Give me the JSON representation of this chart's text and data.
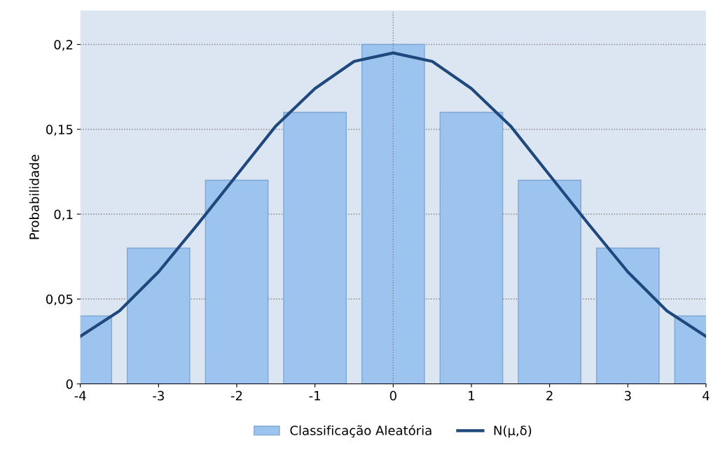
{
  "chart_data": {
    "type": "bar",
    "ylabel": "Probabilidade",
    "x": [
      -4,
      -3,
      -2,
      -1,
      0,
      1,
      2,
      3,
      4
    ],
    "series": [
      {
        "name": "Classificação Aleatória",
        "color": "#9dc3ef",
        "values": [
          0.04,
          0.08,
          0.12,
          0.16,
          0.2,
          0.16,
          0.12,
          0.08,
          0.04
        ]
      },
      {
        "name": "N(μ,δ)",
        "type": "line",
        "color": "#1f497d",
        "x": [
          -4,
          -3.5,
          -3,
          -2.5,
          -2,
          -1.5,
          -1,
          -0.5,
          0,
          0.5,
          1,
          1.5,
          2,
          2.5,
          3,
          3.5,
          4
        ],
        "values": [
          0.028,
          0.043,
          0.066,
          0.094,
          0.123,
          0.152,
          0.174,
          0.19,
          0.195,
          0.19,
          0.174,
          0.152,
          0.123,
          0.094,
          0.066,
          0.043,
          0.028
        ]
      }
    ],
    "xlim": [
      -4,
      4
    ],
    "xticks": [
      -4,
      -3,
      -2,
      -1,
      0,
      1,
      2,
      3,
      4
    ],
    "ylim": [
      0,
      0.22
    ],
    "yticks": [
      0,
      {
        "value": 0.05,
        "label": "0,05"
      },
      {
        "value": 0.1,
        "label": "0,1"
      },
      {
        "value": 0.15,
        "label": "0,15"
      },
      {
        "value": 0.2,
        "label": "0,2"
      }
    ],
    "ref_lines": [
      {
        "axis": "x",
        "value": 0,
        "label": null,
        "color": "#808080",
        "line_style": "dotted"
      }
    ],
    "grid": "y",
    "legend": "bottom",
    "line_style": "solid",
    "marker": "none"
  }
}
